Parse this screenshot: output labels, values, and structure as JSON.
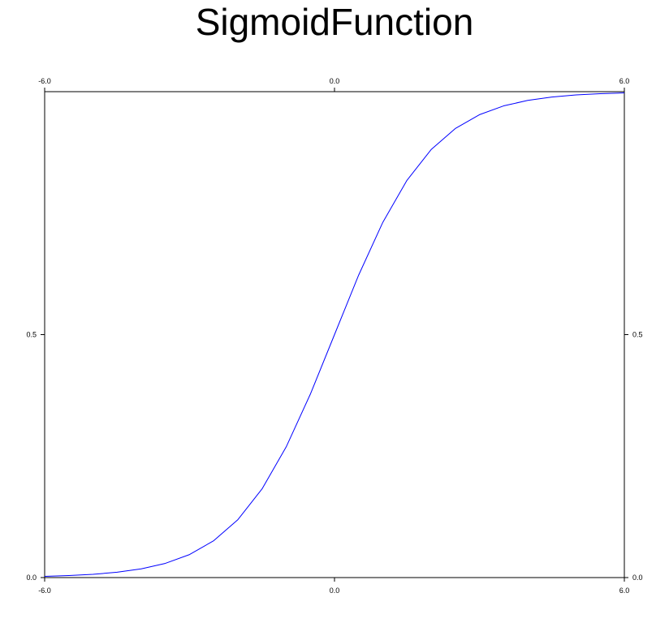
{
  "chart_data": {
    "type": "line",
    "title": "SigmoidFunction",
    "xlabel": "",
    "ylabel": "",
    "xlim": [
      -6.0,
      6.0
    ],
    "ylim": [
      0.0,
      1.0
    ],
    "x_ticks": [
      "-6.0",
      "0.0",
      "6.0"
    ],
    "y_ticks": [
      "0.0",
      "0.5"
    ],
    "grid": false,
    "series": [
      {
        "color": "#0000ff",
        "x": [
          -6.0,
          -5.5,
          -5.0,
          -4.5,
          -4.0,
          -3.5,
          -3.0,
          -2.5,
          -2.0,
          -1.5,
          -1.0,
          -0.5,
          0.0,
          0.5,
          1.0,
          1.5,
          2.0,
          2.5,
          3.0,
          3.5,
          4.0,
          4.5,
          5.0,
          5.5,
          6.0
        ],
        "y": [
          0.0025,
          0.0041,
          0.0067,
          0.011,
          0.018,
          0.0293,
          0.0474,
          0.0759,
          0.1192,
          0.1824,
          0.2689,
          0.3775,
          0.5,
          0.6225,
          0.7311,
          0.8176,
          0.8808,
          0.9241,
          0.9526,
          0.9707,
          0.982,
          0.989,
          0.9933,
          0.9959,
          0.9975
        ]
      }
    ]
  }
}
